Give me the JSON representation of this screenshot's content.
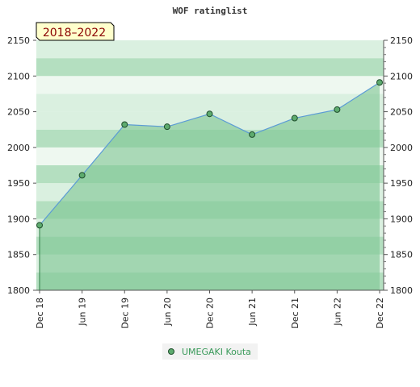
{
  "chart_data": {
    "type": "line",
    "title": "WOF ratinglist",
    "badge": "2018–2022",
    "xlabel": "",
    "ylabel": "",
    "ylim": [
      1800,
      2150
    ],
    "yticks": [
      1800,
      1850,
      1900,
      1950,
      2000,
      2050,
      2100,
      2150
    ],
    "categories": [
      "Dec 18",
      "Jun 19",
      "Dec 19",
      "Jun 20",
      "Dec 20",
      "Jun 21",
      "Dec 21",
      "Jun 22",
      "Dec 22"
    ],
    "series": [
      {
        "name": "UMEGAKI Kouta",
        "values": [
          1891,
          1961,
          2032,
          2029,
          2047,
          2018,
          2041,
          2053,
          2091
        ]
      }
    ],
    "grid": true,
    "legend": "bottom-center",
    "colors": {
      "line": "#5b9bd5",
      "area": "#7fc795",
      "marker_fill": "#5dab6e",
      "marker_stroke": "#1e4d2b",
      "badge_bg": "#ffffcc",
      "badge_text": "#8b0000",
      "legend_text": "#3a9a5a",
      "band_dark": "#b4dfc0",
      "band_light": "#daf0e0",
      "band_pale": "#eef8f0"
    }
  }
}
